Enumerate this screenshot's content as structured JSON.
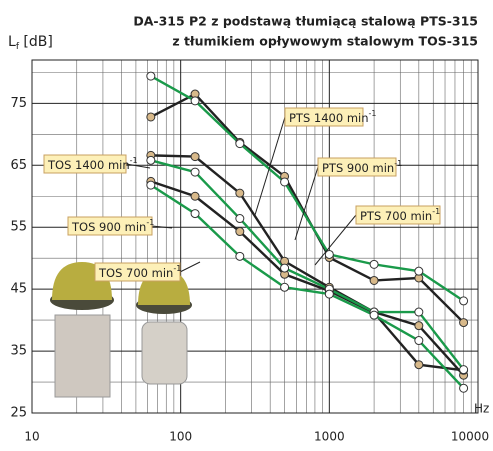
{
  "chart_data": {
    "type": "line",
    "title": [
      "DA-315 P2 z podstawą tłumiącą stalową PTS-315",
      "z tłumikiem opływowym stalowym TOS-315"
    ],
    "y_label": {
      "main": "L",
      "sub": "f",
      "unit": " [dB]"
    },
    "x_label": "Hz",
    "log_x": true,
    "grid": true,
    "x": [
      63,
      125,
      250,
      500,
      1000,
      2000,
      4000,
      8000
    ],
    "xlim": [
      10,
      10000
    ],
    "xticks": [
      10,
      100,
      1000,
      10000
    ],
    "x_minor_ticks": [
      20,
      30,
      40,
      50,
      60,
      70,
      80,
      90,
      200,
      300,
      400,
      500,
      600,
      700,
      800,
      900,
      2000,
      3000,
      4000,
      5000,
      6000,
      7000,
      8000,
      9000
    ],
    "ylim": [
      25,
      82
    ],
    "yticks": [
      25,
      35,
      45,
      55,
      65,
      75
    ],
    "y_minor_ticks": [
      30,
      40,
      50,
      60,
      70,
      80
    ],
    "label_sup": "-1",
    "series": [
      {
        "name": "PTS 1400 min",
        "color": "#222222",
        "marker": "#d8b98a",
        "values": [
          72.8,
          76.5,
          68.7,
          63.2,
          50.1,
          46.4,
          46.8,
          39.6
        ]
      },
      {
        "name": "PTS 900 min",
        "color": "#222222",
        "marker": "#d8b98a",
        "values": [
          66.6,
          66.4,
          60.5,
          49.5,
          45.3,
          41.3,
          39.1,
          31.1
        ]
      },
      {
        "name": "PTS 700 min",
        "color": "#222222",
        "marker": "#d8b98a",
        "values": [
          62.4,
          60.0,
          54.3,
          47.4,
          44.7,
          41.2,
          32.8,
          31.9
        ]
      },
      {
        "name": "TOS 1400 min",
        "color": "#1a9a4a",
        "marker": "#ffffff",
        "values": [
          79.4,
          75.4,
          68.5,
          62.3,
          50.6,
          49.0,
          47.9,
          43.1
        ]
      },
      {
        "name": "TOS 900 min",
        "color": "#1a9a4a",
        "marker": "#ffffff",
        "values": [
          65.8,
          63.9,
          56.4,
          48.4,
          45.0,
          41.3,
          41.3,
          32.0
        ]
      },
      {
        "name": "TOS 700 min",
        "color": "#1a9a4a",
        "marker": "#ffffff",
        "values": [
          61.8,
          57.2,
          50.3,
          45.3,
          44.2,
          40.8,
          36.7,
          29.0
        ]
      }
    ]
  }
}
